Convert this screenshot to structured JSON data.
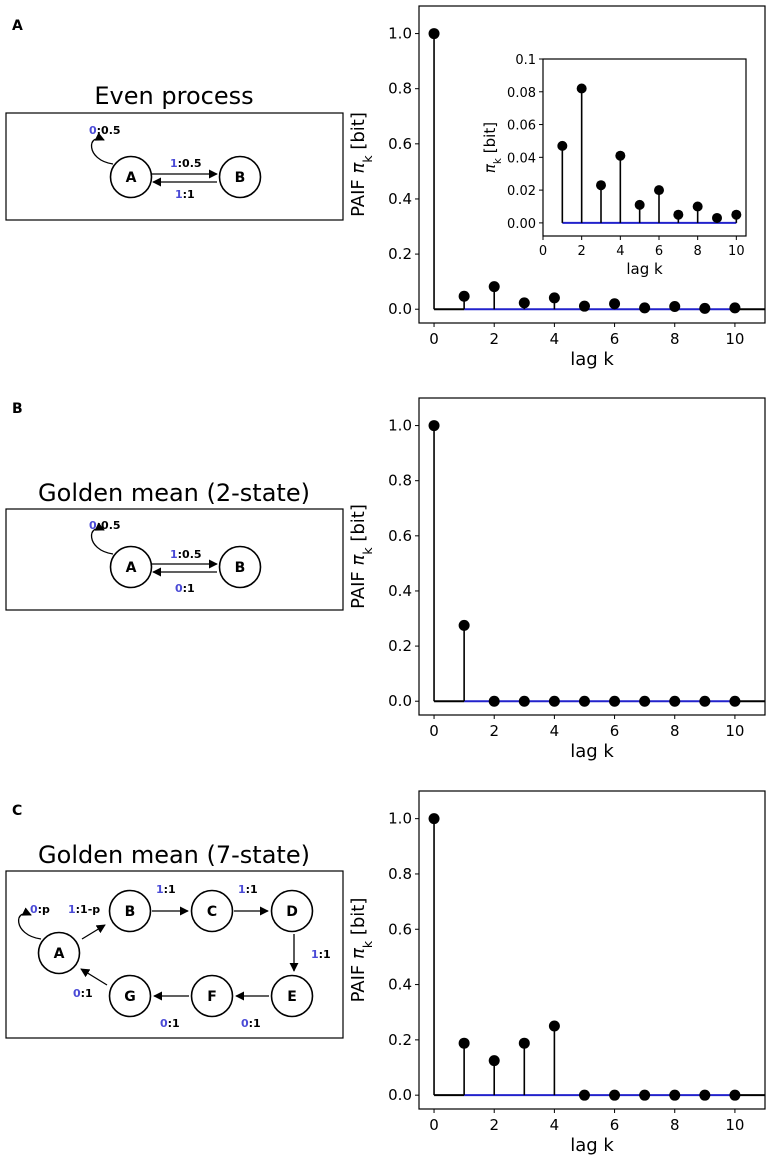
{
  "panels": [
    {
      "label": "A",
      "diagram": {
        "title": "Even process",
        "nodes": [
          {
            "id": "A",
            "label": "A"
          },
          {
            "id": "B",
            "label": "B"
          }
        ],
        "edges": [
          {
            "from": "A",
            "to": "A",
            "symbol": "0",
            "prob": ":0.5"
          },
          {
            "from": "A",
            "to": "B",
            "symbol": "1",
            "prob": ":0.5"
          },
          {
            "from": "B",
            "to": "A",
            "symbol": "1",
            "prob": ":1"
          }
        ]
      }
    },
    {
      "label": "B",
      "diagram": {
        "title": "Golden mean (2-state)",
        "nodes": [
          {
            "id": "A",
            "label": "A"
          },
          {
            "id": "B",
            "label": "B"
          }
        ],
        "edges": [
          {
            "from": "A",
            "to": "A",
            "symbol": "0",
            "prob": ":0.5"
          },
          {
            "from": "A",
            "to": "B",
            "symbol": "1",
            "prob": ":0.5"
          },
          {
            "from": "B",
            "to": "A",
            "symbol": "0",
            "prob": ":1"
          }
        ]
      }
    },
    {
      "label": "C",
      "diagram": {
        "title": "Golden mean (7-state)",
        "nodes": [
          {
            "id": "A",
            "label": "A"
          },
          {
            "id": "B",
            "label": "B"
          },
          {
            "id": "C",
            "label": "C"
          },
          {
            "id": "D",
            "label": "D"
          },
          {
            "id": "E",
            "label": "E"
          },
          {
            "id": "F",
            "label": "F"
          },
          {
            "id": "G",
            "label": "G"
          }
        ],
        "edges": [
          {
            "from": "A",
            "to": "A",
            "symbol": "0",
            "prob": ":p"
          },
          {
            "from": "A",
            "to": "B",
            "symbol": "1",
            "prob": ":1-p"
          },
          {
            "from": "B",
            "to": "C",
            "symbol": "1",
            "prob": ":1"
          },
          {
            "from": "C",
            "to": "D",
            "symbol": "1",
            "prob": ":1"
          },
          {
            "from": "D",
            "to": "E",
            "symbol": "1",
            "prob": ":1"
          },
          {
            "from": "E",
            "to": "F",
            "symbol": "0",
            "prob": ":1"
          },
          {
            "from": "F",
            "to": "G",
            "symbol": "0",
            "prob": ":1"
          },
          {
            "from": "G",
            "to": "A",
            "symbol": "0",
            "prob": ":1"
          }
        ]
      }
    }
  ],
  "chart_data": [
    {
      "type": "stem",
      "panel": "A",
      "x": [
        0,
        1,
        2,
        3,
        4,
        5,
        6,
        7,
        8,
        9,
        10
      ],
      "values": [
        1.0,
        0.047,
        0.082,
        0.023,
        0.041,
        0.011,
        0.02,
        0.005,
        0.01,
        0.003,
        0.005
      ],
      "xlabel": "lag k",
      "ylabel": "PAIF π_k [bit]",
      "ylabel_main": "PAIF ",
      "ylabel_symbol": "π",
      "ylabel_sub": "k",
      "ylabel_unit": " [bit]",
      "xlim": [
        -0.5,
        11
      ],
      "ylim": [
        -0.05,
        1.1
      ],
      "xticks": [
        0,
        2,
        4,
        6,
        8,
        10
      ],
      "yticks": [
        0.0,
        0.2,
        0.4,
        0.6,
        0.8,
        1.0
      ],
      "tick_labels_x": [
        "0",
        "2",
        "4",
        "6",
        "8",
        "10"
      ],
      "tick_labels_y": [
        "0.0",
        "0.2",
        "0.4",
        "0.6",
        "0.8",
        "1.0"
      ],
      "baseline_color": "#2222cc",
      "inset": {
        "x": [
          1,
          2,
          3,
          4,
          5,
          6,
          7,
          8,
          9,
          10
        ],
        "values": [
          0.047,
          0.082,
          0.023,
          0.041,
          0.011,
          0.02,
          0.005,
          0.01,
          0.003,
          0.005
        ],
        "xlabel": "lag k",
        "ylabel_symbol": "π",
        "ylabel_sub": "k",
        "ylabel_unit": " [bit]",
        "xlim": [
          0,
          10.5
        ],
        "ylim": [
          -0.008,
          0.1
        ],
        "xticks": [
          0,
          2,
          4,
          6,
          8,
          10
        ],
        "yticks": [
          0.0,
          0.02,
          0.04,
          0.06,
          0.08,
          0.1
        ],
        "tick_labels_x": [
          "0",
          "2",
          "4",
          "6",
          "8",
          "10"
        ],
        "tick_labels_y": [
          "0.00",
          "0.02",
          "0.04",
          "0.06",
          "0.08",
          "0.1"
        ]
      }
    },
    {
      "type": "stem",
      "panel": "B",
      "x": [
        0,
        1,
        2,
        3,
        4,
        5,
        6,
        7,
        8,
        9,
        10
      ],
      "values": [
        1.0,
        0.275,
        0,
        0,
        0,
        0,
        0,
        0,
        0,
        0,
        0
      ],
      "xlabel": "lag k",
      "ylabel": "PAIF π_k [bit]",
      "ylabel_main": "PAIF ",
      "ylabel_symbol": "π",
      "ylabel_sub": "k",
      "ylabel_unit": " [bit]",
      "xlim": [
        -0.5,
        11
      ],
      "ylim": [
        -0.05,
        1.1
      ],
      "xticks": [
        0,
        2,
        4,
        6,
        8,
        10
      ],
      "yticks": [
        0.0,
        0.2,
        0.4,
        0.6,
        0.8,
        1.0
      ],
      "tick_labels_x": [
        "0",
        "2",
        "4",
        "6",
        "8",
        "10"
      ],
      "tick_labels_y": [
        "0.0",
        "0.2",
        "0.4",
        "0.6",
        "0.8",
        "1.0"
      ],
      "baseline_color": "#2222cc"
    },
    {
      "type": "stem",
      "panel": "C",
      "x": [
        0,
        1,
        2,
        3,
        4,
        5,
        6,
        7,
        8,
        9,
        10
      ],
      "values": [
        1.0,
        0.188,
        0.125,
        0.188,
        0.25,
        0,
        0,
        0,
        0,
        0,
        0
      ],
      "xlabel": "lag k",
      "ylabel": "PAIF π_k [bit]",
      "ylabel_main": "PAIF ",
      "ylabel_symbol": "π",
      "ylabel_sub": "k",
      "ylabel_unit": " [bit]",
      "xlim": [
        -0.5,
        11
      ],
      "ylim": [
        -0.05,
        1.1
      ],
      "xticks": [
        0,
        2,
        4,
        6,
        8,
        10
      ],
      "yticks": [
        0.0,
        0.2,
        0.4,
        0.6,
        0.8,
        1.0
      ],
      "tick_labels_x": [
        "0",
        "2",
        "4",
        "6",
        "8",
        "10"
      ],
      "tick_labels_y": [
        "0.0",
        "0.2",
        "0.4",
        "0.6",
        "0.8",
        "1.0"
      ],
      "baseline_color": "#2222cc"
    }
  ]
}
